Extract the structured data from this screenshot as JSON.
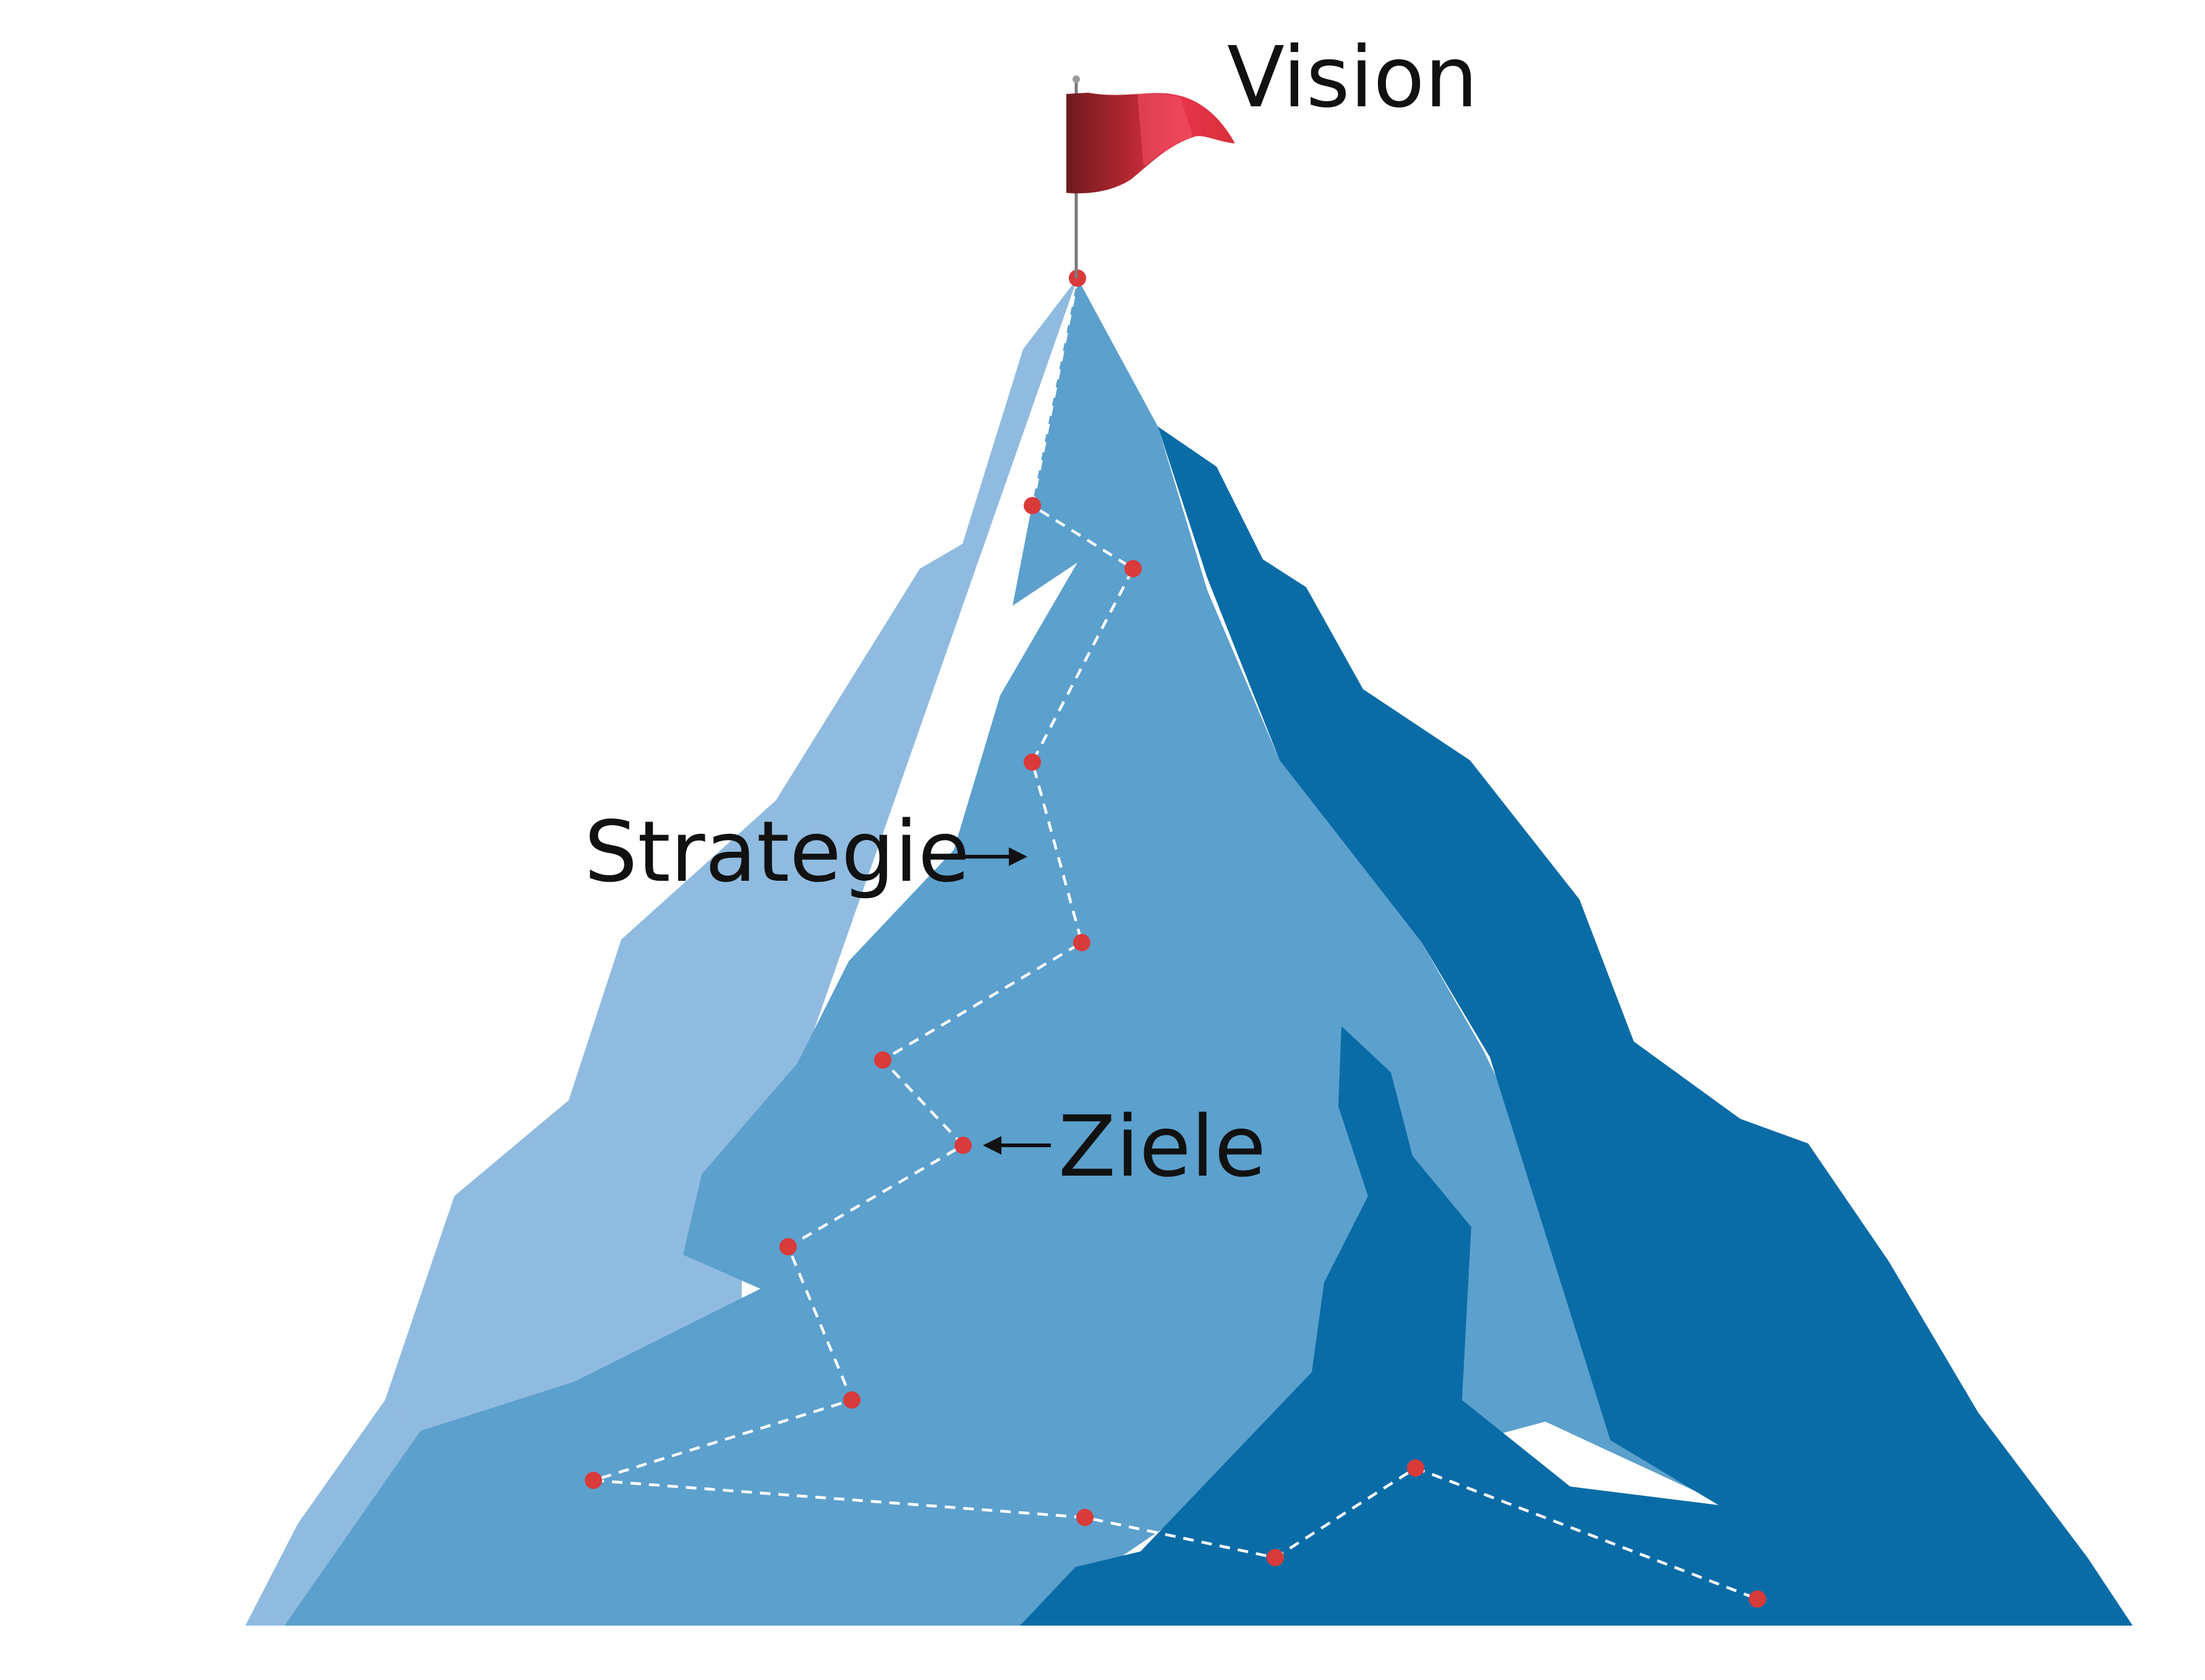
{
  "labels": {
    "vision": "Vision",
    "strategy": "Strategie",
    "goals": "Ziele"
  },
  "colors": {
    "mountain_light": "#90bbe0",
    "mountain_mid": "#5ca0cd",
    "mountain_dark": "#0a6ca7",
    "waypoint": "#d93a3a",
    "path": "#ffffff",
    "flag": "#e33a4a",
    "flag_shadow": "#8b1f24",
    "pole": "#7a7a7a",
    "arrow": "#111111"
  },
  "icons": {
    "flag": "flag-icon",
    "arrow_right": "arrow-right-icon",
    "arrow_left": "arrow-left-icon"
  },
  "waypoint_count": 14
}
